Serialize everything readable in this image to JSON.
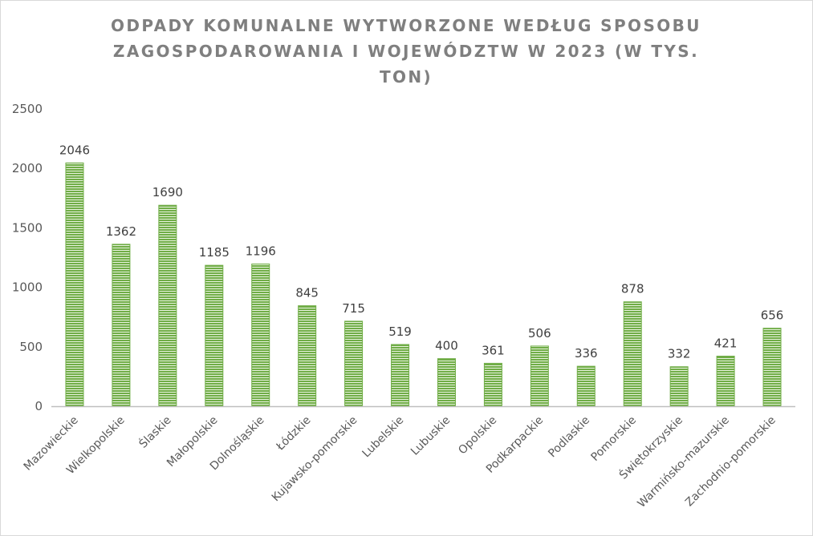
{
  "chart_data": {
    "type": "bar",
    "title": "ODPADY KOMUNALNE WYTWORZONE WEDŁUG SPOSOBU ZAGOSPODAROWANIA I WOJEWÓDZTW W 2023 (W TYS. TON)",
    "xlabel": "",
    "ylabel": "",
    "ylim": [
      0,
      2500
    ],
    "yticks": [
      "0",
      "500",
      "1000",
      "1500",
      "2000",
      "2500"
    ],
    "grid": false,
    "legend": "none",
    "bar_color": "#70ad47",
    "categories": [
      "Mazowieckie",
      "Wielkopolskie",
      "Ślaskie",
      "Małopolskie",
      "Dolnośląskie",
      "Łódzkie",
      "Kujawsko-pomorskie",
      "Lubelskie",
      "Lubuskie",
      "Opolskie",
      "Podkarpackie",
      "Podlaskie",
      "Pomorskie",
      "Świętokrzyskie",
      "Warmińsko-mazurskie",
      "Zachodnio-pomorskie"
    ],
    "values": [
      2046,
      1362,
      1690,
      1185,
      1196,
      845,
      715,
      519,
      400,
      361,
      506,
      336,
      878,
      332,
      421,
      656
    ]
  }
}
